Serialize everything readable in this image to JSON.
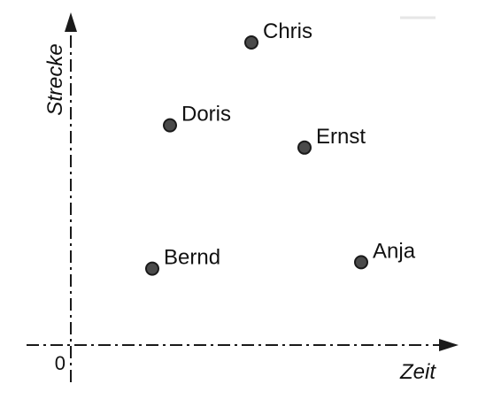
{
  "chart_data": {
    "type": "scatter",
    "title": "",
    "xlabel": "Zeit",
    "ylabel": "Strecke",
    "origin_label": "0",
    "grid": false,
    "axes_style": "dash-dot with arrows",
    "point_color": "#4a4a4a",
    "xlim": [
      0,
      10
    ],
    "ylim": [
      0,
      10
    ],
    "points": [
      {
        "label": "Chris",
        "x": 5.1,
        "y": 9.5
      },
      {
        "label": "Doris",
        "x": 2.8,
        "y": 6.9
      },
      {
        "label": "Ernst",
        "x": 6.6,
        "y": 6.2
      },
      {
        "label": "Anja",
        "x": 8.2,
        "y": 2.6
      },
      {
        "label": "Bernd",
        "x": 2.3,
        "y": 2.4
      }
    ]
  }
}
